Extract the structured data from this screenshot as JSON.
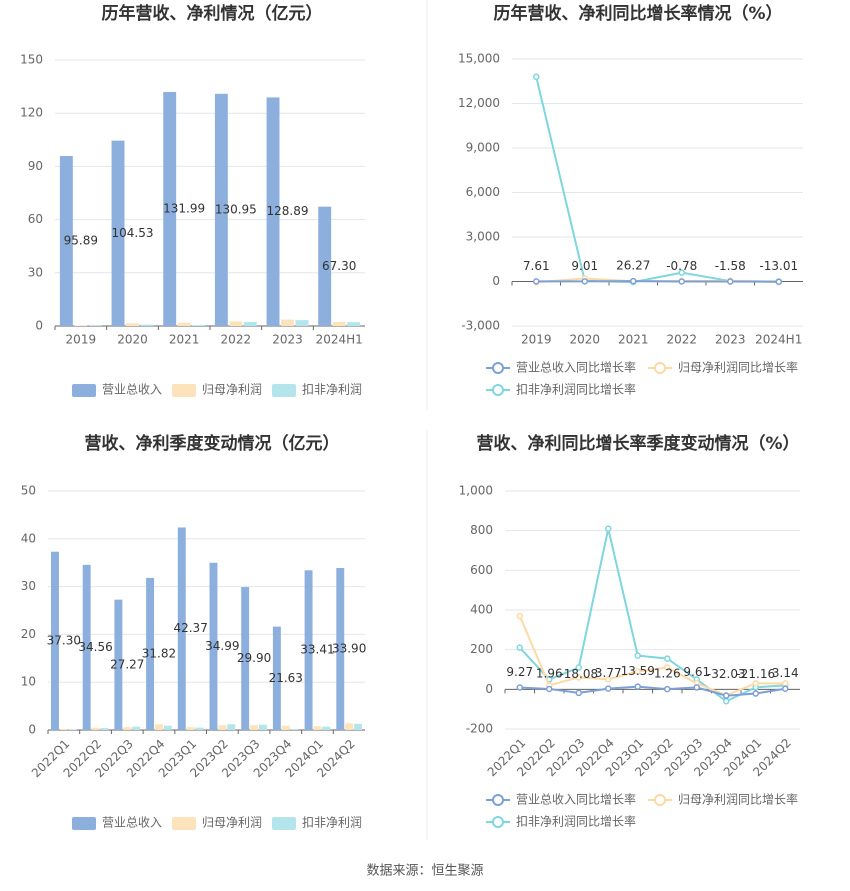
{
  "chart_data": [
    {
      "type": "bar",
      "title": "历年营收、净利情况（亿元）",
      "categories": [
        "2019",
        "2020",
        "2021",
        "2022",
        "2023",
        "2024H1"
      ],
      "series": [
        {
          "name": "营业总收入",
          "color": "#8cafdd",
          "values": [
            95.89,
            104.53,
            131.99,
            130.95,
            128.89,
            67.3
          ],
          "value_labels": [
            "95.89",
            "104.53",
            "131.99",
            "130.95",
            "128.89",
            "67.30"
          ]
        },
        {
          "name": "归母净利润",
          "color": "#fde3bb",
          "values": [
            0.3,
            1.5,
            1.8,
            2.6,
            3.6,
            2.3
          ]
        },
        {
          "name": "扣非净利润",
          "color": "#b5e5ec",
          "values": [
            0.2,
            0.8,
            0.5,
            2.3,
            3.3,
            2.2
          ]
        }
      ],
      "ylim": [
        0,
        150
      ],
      "yticks": [
        0,
        30,
        60,
        90,
        120,
        150
      ],
      "grid": true,
      "legend": "bottom"
    },
    {
      "type": "line",
      "title": "历年营收、净利同比增长率情况（%）",
      "categories": [
        "2019",
        "2020",
        "2021",
        "2022",
        "2023",
        "2024H1"
      ],
      "series": [
        {
          "name": "营业总收入同比增长率",
          "color": "#7d9fd6",
          "values": [
            7.61,
            9.01,
            26.27,
            -0.78,
            -1.58,
            -13.01
          ],
          "show_labels": true
        },
        {
          "name": "归母净利润同比增长率",
          "color": "#fdd9a5",
          "values": [
            -50,
            200,
            20,
            30,
            40,
            -35
          ]
        },
        {
          "name": "扣非净利润同比增长率",
          "color": "#7fd6dc",
          "values": [
            13800,
            50,
            -40,
            600,
            30,
            0
          ]
        }
      ],
      "ylim": [
        -3000,
        15000
      ],
      "yticks": [
        {
          "value": -3000,
          "label": "-3,000"
        },
        0,
        {
          "value": 3000,
          "label": "3,000"
        },
        {
          "value": 6000,
          "label": "6,000"
        },
        {
          "value": 9000,
          "label": "9,000"
        },
        {
          "value": 12000,
          "label": "12,000"
        },
        {
          "value": 15000,
          "label": "15,000"
        }
      ],
      "grid": true,
      "legend": "bottom"
    },
    {
      "type": "bar",
      "title": "营收、净利季度变动情况（亿元）",
      "categories": [
        "2022Q1",
        "2022Q2",
        "2022Q3",
        "2022Q4",
        "2023Q1",
        "2023Q2",
        "2023Q3",
        "2023Q4",
        "2024Q1",
        "2024Q2"
      ],
      "series": [
        {
          "name": "营业总收入",
          "color": "#8cafdd",
          "values": [
            37.3,
            34.56,
            27.27,
            31.82,
            42.37,
            34.99,
            29.9,
            21.63,
            33.41,
            33.9
          ],
          "value_labels": [
            "37.30",
            "34.56",
            "27.27",
            "31.82",
            "42.37",
            "34.99",
            "29.90",
            "21.63",
            "33.41",
            "33.90"
          ]
        },
        {
          "name": "归母净利润",
          "color": "#fde3bb",
          "values": [
            0.2,
            0.5,
            0.6,
            1.2,
            0.6,
            1.0,
            1.0,
            0.9,
            0.8,
            1.4
          ]
        },
        {
          "name": "扣非净利润",
          "color": "#b5e5ec",
          "values": [
            0.1,
            0.4,
            0.7,
            0.9,
            0.5,
            1.2,
            1.1,
            0.2,
            0.7,
            1.3
          ]
        }
      ],
      "ylim": [
        0,
        50
      ],
      "yticks": [
        0,
        10,
        20,
        30,
        40,
        50
      ],
      "grid": true,
      "legend": "bottom"
    },
    {
      "type": "line",
      "title": "营收、净利同比增长率季度变动情况（%）",
      "categories": [
        "2022Q1",
        "2022Q2",
        "2022Q3",
        "2022Q4",
        "2023Q1",
        "2023Q2",
        "2023Q3",
        "2023Q4",
        "2024Q1",
        "2024Q2"
      ],
      "series": [
        {
          "name": "营业总收入同比增长率",
          "color": "#7d9fd6",
          "values": [
            9.27,
            1.96,
            -18.08,
            3.77,
            13.59,
            1.26,
            9.61,
            -32.03,
            -21.16,
            3.14
          ],
          "show_labels": true
        },
        {
          "name": "归母净利润同比增长率",
          "color": "#fdd9a5",
          "values": [
            370,
            20,
            60,
            50,
            90,
            110,
            30,
            -30,
            30,
            30
          ]
        },
        {
          "name": "扣非净利润同比增长率",
          "color": "#7fd6dc",
          "values": [
            210,
            50,
            110,
            810,
            170,
            155,
            50,
            -60,
            10,
            20
          ]
        }
      ],
      "ylim": [
        -200,
        1000
      ],
      "yticks": [
        -200,
        0,
        200,
        400,
        600,
        800,
        {
          "value": 1000,
          "label": "1,000"
        }
      ],
      "grid": true,
      "legend": "bottom"
    }
  ],
  "source": "数据来源：恒生聚源"
}
